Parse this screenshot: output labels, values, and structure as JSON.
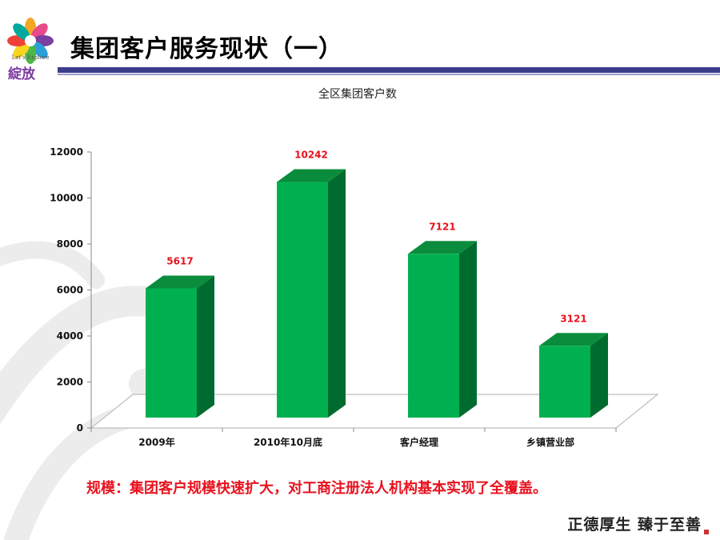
{
  "logo": {
    "caption": "Let's Explore",
    "name": "綻放"
  },
  "slide": {
    "title": "集团客户服务现状（一）",
    "footer_note": "规模：集团客户规模快速扩大，对工商注册法人机构基本实现了全覆盖。",
    "motto": "正德厚生 臻于至善"
  },
  "colors": {
    "bar_front": "#00b050",
    "bar_side": "#006b2e",
    "bar_top": "#0a8c3c",
    "data_label": "#e8121e",
    "title_bar": "#3a3d8c"
  },
  "chart_data": {
    "type": "bar",
    "title": "全区集团客户数",
    "categories": [
      "2009年",
      "2010年10月底",
      "客户经理",
      "乡镇营业部"
    ],
    "values": [
      5617,
      10242,
      7121,
      3121
    ],
    "data_labels": [
      "5617",
      "10242",
      "7121",
      "3121"
    ],
    "ylim": [
      0,
      12000
    ],
    "yticks": [
      0,
      2000,
      4000,
      6000,
      8000,
      10000,
      12000
    ],
    "ytick_labels": [
      "0",
      "2000",
      "4000",
      "6000",
      "8000",
      "10000",
      "12000"
    ],
    "xlabel": "",
    "ylabel": "",
    "grid": false,
    "legend": "none",
    "style": "3d-column"
  }
}
